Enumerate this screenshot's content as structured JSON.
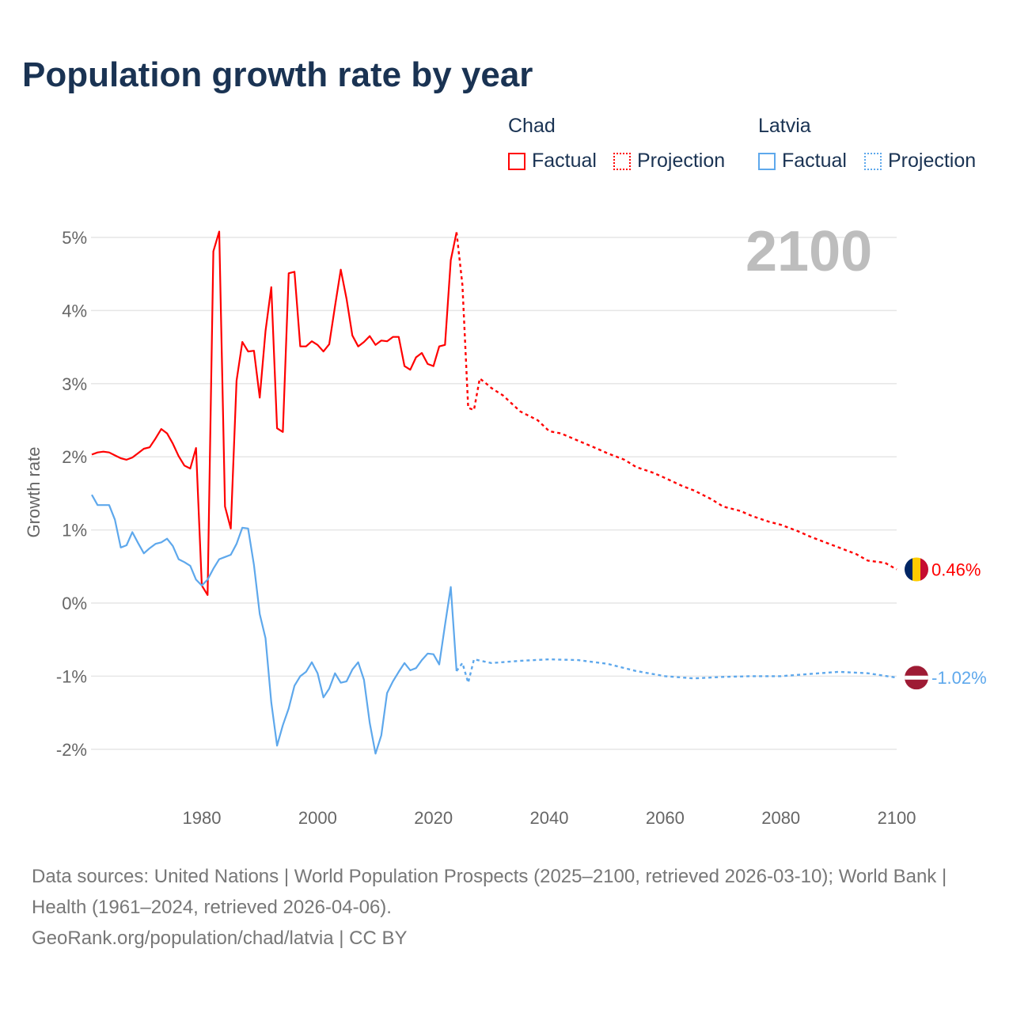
{
  "title": "Population growth rate by year",
  "legend": {
    "groups": [
      {
        "name": "Chad",
        "color": "#ff0000",
        "factual": "Factual",
        "projection": "Projection"
      },
      {
        "name": "Latvia",
        "color": "#5ea8ec",
        "factual": "Factual",
        "projection": "Projection"
      }
    ]
  },
  "year_label": "2100",
  "footer": {
    "sources": "Data sources: United Nations | World Population Prospects (2025–2100, retrieved 2026-03-10); World Bank | Health (1961–2024, retrieved 2026-04-06).",
    "attribution": "GeoRank.org/population/chad/latvia | CC BY"
  },
  "chart_data": {
    "type": "line",
    "title": "Population growth rate by year",
    "xlabel": "",
    "ylabel": "Growth rate",
    "xlim": [
      1961,
      2100
    ],
    "ylim": [
      -2.5,
      5.2
    ],
    "xticks": [
      1980,
      2000,
      2020,
      2040,
      2060,
      2080,
      2100
    ],
    "xtick_labels": [
      "1980",
      "2000",
      "2020",
      "2040",
      "2060",
      "2080",
      "2100"
    ],
    "yticks": [
      5,
      4,
      3,
      2,
      1,
      0,
      -1,
      -2
    ],
    "ytick_labels": [
      "5%",
      "4%",
      "3%",
      "2%",
      "1%",
      "0%",
      "-1%",
      "-2%"
    ],
    "grid": true,
    "legend_position": "top-right",
    "series": [
      {
        "name": "Chad",
        "color": "#ff0000",
        "end_label": "0.46%",
        "factual": {
          "x": [
            1961,
            1962,
            1963,
            1964,
            1965,
            1966,
            1967,
            1968,
            1969,
            1970,
            1971,
            1972,
            1973,
            1974,
            1975,
            1976,
            1977,
            1978,
            1979,
            1980,
            1981,
            1982,
            1983,
            1984,
            1985,
            1986,
            1987,
            1988,
            1989,
            1990,
            1991,
            1992,
            1993,
            1994,
            1995,
            1996,
            1997,
            1998,
            1999,
            2000,
            2001,
            2002,
            2003,
            2004,
            2005,
            2006,
            2007,
            2008,
            2009,
            2010,
            2011,
            2012,
            2013,
            2014,
            2015,
            2016,
            2017,
            2018,
            2019,
            2020,
            2021,
            2022,
            2023,
            2024
          ],
          "y": [
            2.03,
            2.06,
            2.07,
            2.06,
            2.02,
            1.98,
            1.96,
            1.99,
            2.05,
            2.11,
            2.13,
            2.25,
            2.38,
            2.32,
            2.18,
            2.01,
            1.88,
            1.84,
            2.12,
            0.24,
            0.11,
            4.81,
            5.08,
            1.32,
            1.02,
            3.04,
            3.57,
            3.44,
            3.45,
            2.81,
            3.72,
            4.32,
            2.39,
            2.34,
            4.51,
            4.53,
            3.51,
            3.51,
            3.58,
            3.53,
            3.44,
            3.54,
            4.06,
            4.56,
            4.16,
            3.66,
            3.51,
            3.57,
            3.65,
            3.53,
            3.59,
            3.58,
            3.64,
            3.64,
            3.24,
            3.19,
            3.36,
            3.42,
            3.27,
            3.24,
            3.51,
            3.53,
            4.69,
            5.07
          ]
        },
        "projection": {
          "x": [
            2024,
            2025,
            2026,
            2027,
            2028,
            2029,
            2030,
            2032,
            2035,
            2038,
            2040,
            2042,
            2045,
            2048,
            2050,
            2053,
            2055,
            2058,
            2060,
            2063,
            2065,
            2068,
            2070,
            2073,
            2075,
            2078,
            2080,
            2083,
            2085,
            2088,
            2090,
            2093,
            2095,
            2098,
            2100
          ],
          "y": [
            5.07,
            4.35,
            2.67,
            2.64,
            3.07,
            3.01,
            2.94,
            2.84,
            2.62,
            2.5,
            2.35,
            2.32,
            2.22,
            2.12,
            2.05,
            1.96,
            1.86,
            1.78,
            1.71,
            1.6,
            1.54,
            1.42,
            1.32,
            1.26,
            1.19,
            1.11,
            1.07,
            0.98,
            0.91,
            0.82,
            0.76,
            0.67,
            0.58,
            0.55,
            0.46
          ]
        }
      },
      {
        "name": "Latvia",
        "color": "#5ea8ec",
        "end_label": "-1.02%",
        "factual": {
          "x": [
            1961,
            1962,
            1963,
            1964,
            1965,
            1966,
            1967,
            1968,
            1969,
            1970,
            1971,
            1972,
            1973,
            1974,
            1975,
            1976,
            1977,
            1978,
            1979,
            1980,
            1981,
            1982,
            1983,
            1984,
            1985,
            1986,
            1987,
            1988,
            1989,
            1990,
            1991,
            1992,
            1993,
            1994,
            1995,
            1996,
            1997,
            1998,
            1999,
            2000,
            2001,
            2002,
            2003,
            2004,
            2005,
            2006,
            2007,
            2008,
            2009,
            2010,
            2011,
            2012,
            2013,
            2014,
            2015,
            2016,
            2017,
            2018,
            2019,
            2020,
            2021,
            2022,
            2023,
            2024
          ],
          "y": [
            1.48,
            1.34,
            1.34,
            1.34,
            1.14,
            0.76,
            0.79,
            0.97,
            0.82,
            0.68,
            0.75,
            0.81,
            0.83,
            0.88,
            0.78,
            0.6,
            0.56,
            0.51,
            0.32,
            0.24,
            0.32,
            0.47,
            0.6,
            0.63,
            0.66,
            0.81,
            1.03,
            1.02,
            0.52,
            -0.15,
            -0.48,
            -1.36,
            -1.95,
            -1.67,
            -1.44,
            -1.13,
            -1.0,
            -0.94,
            -0.81,
            -0.96,
            -1.29,
            -1.17,
            -0.96,
            -1.09,
            -1.07,
            -0.91,
            -0.81,
            -1.05,
            -1.64,
            -2.06,
            -1.81,
            -1.23,
            -1.07,
            -0.94,
            -0.82,
            -0.92,
            -0.89,
            -0.78,
            -0.69,
            -0.7,
            -0.84,
            -0.3,
            0.22,
            -0.93
          ]
        },
        "projection": {
          "x": [
            2024,
            2025,
            2026,
            2027,
            2030,
            2035,
            2040,
            2045,
            2050,
            2055,
            2060,
            2065,
            2070,
            2075,
            2080,
            2085,
            2090,
            2095,
            2100
          ],
          "y": [
            -0.93,
            -0.82,
            -1.09,
            -0.77,
            -0.82,
            -0.79,
            -0.77,
            -0.78,
            -0.83,
            -0.93,
            -1.0,
            -1.03,
            -1.01,
            -1.0,
            -1.0,
            -0.97,
            -0.94,
            -0.96,
            -1.02
          ]
        }
      }
    ]
  }
}
